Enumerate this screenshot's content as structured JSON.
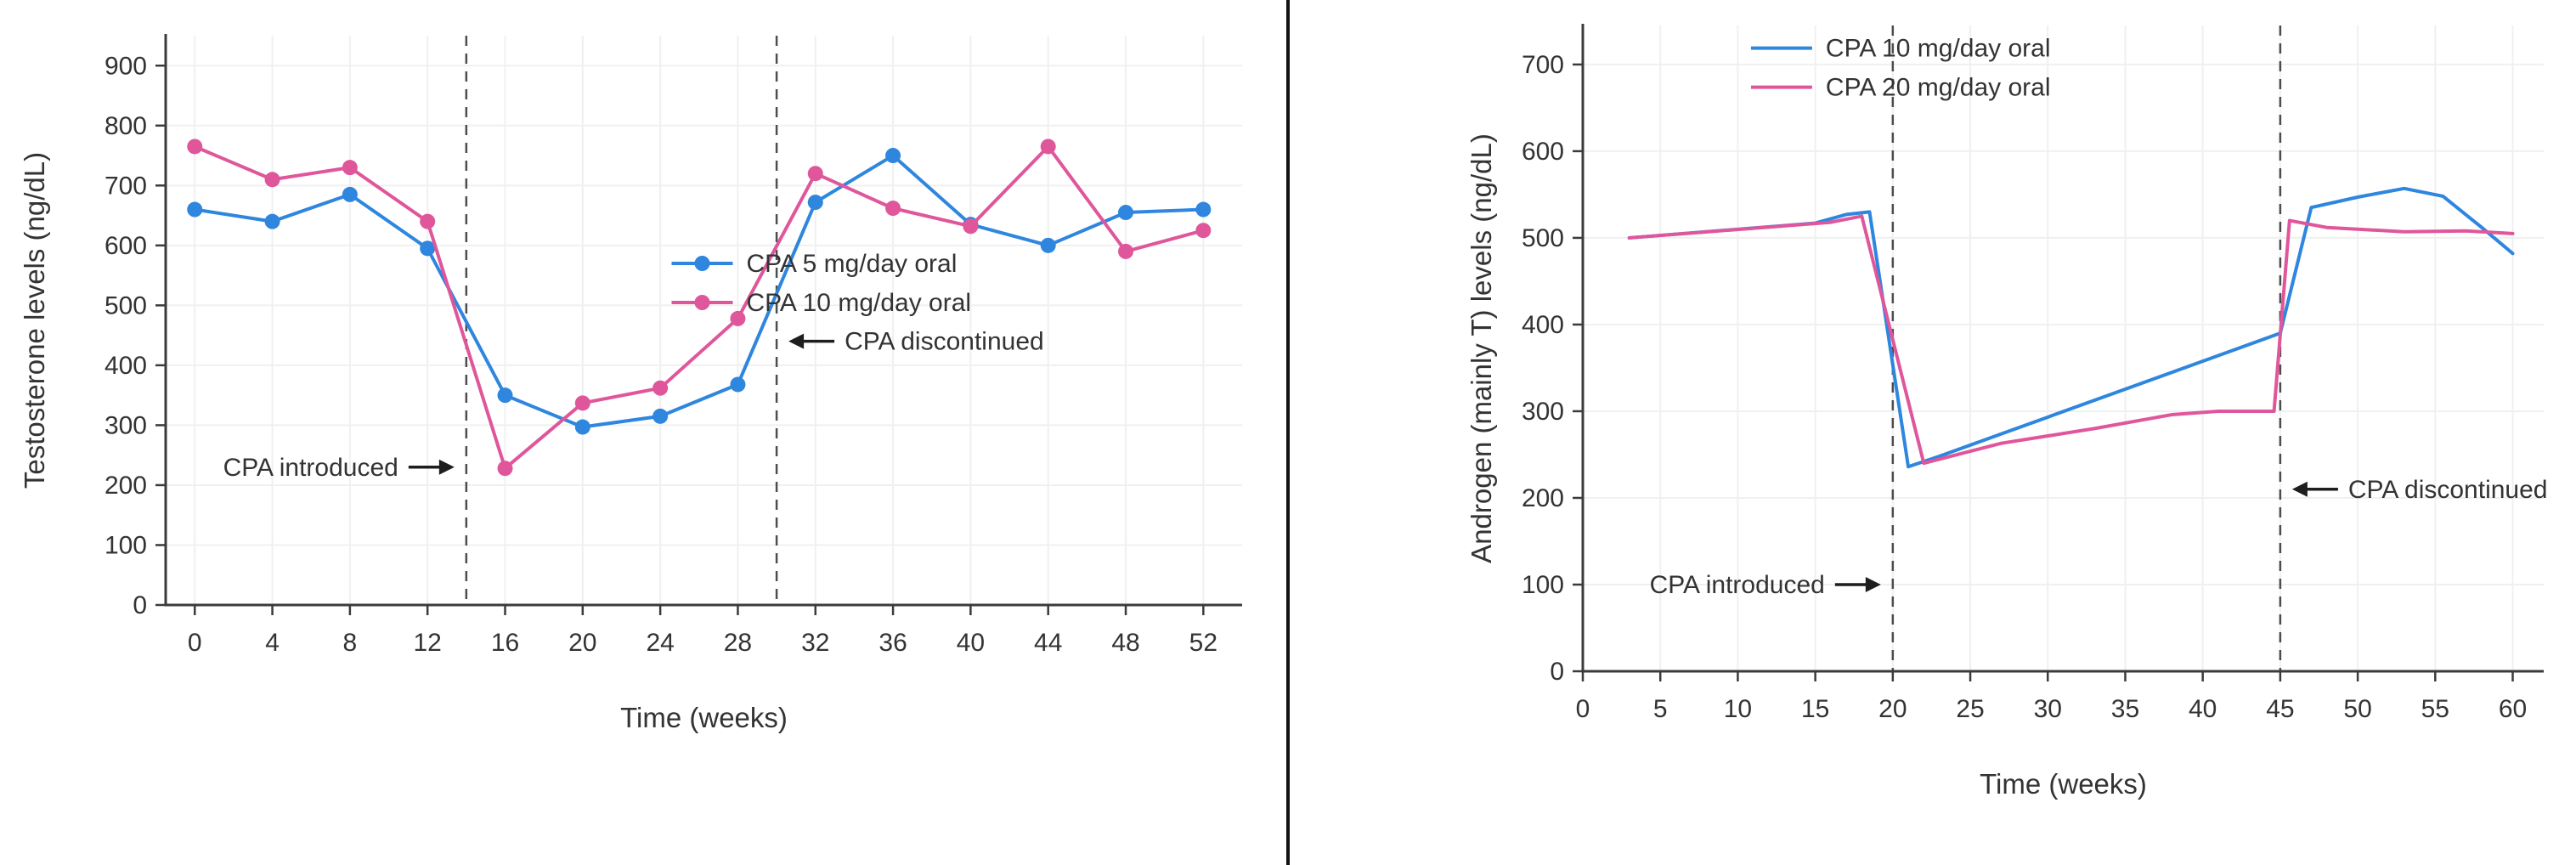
{
  "style": {
    "axis_color": "#3b3b3b",
    "grid_color": "#f0f0f0",
    "vline_color": "#4d4d4d",
    "arrow_color": "#1e1e1e",
    "text_color": "#333333",
    "blue": "#2e86de",
    "pink": "#e0569b"
  },
  "chart_data": [
    {
      "type": "line",
      "title": "",
      "xlabel": "Time (weeks)",
      "ylabel": "Testosterone levels (ng/dL)",
      "xlim": [
        -1.5,
        54
      ],
      "ylim": [
        0,
        950
      ],
      "xticks": [
        0,
        4,
        8,
        12,
        16,
        20,
        24,
        28,
        32,
        36,
        40,
        44,
        48,
        52
      ],
      "yticks": [
        0,
        100,
        200,
        300,
        400,
        500,
        600,
        700,
        800,
        900
      ],
      "grid": true,
      "legend_position": "inside-right-middle",
      "vlines": [
        {
          "x": 14
        },
        {
          "x": 30
        }
      ],
      "series": [
        {
          "name": "CPA 5 mg/day oral",
          "color": "#2e86de",
          "marker": true,
          "points": [
            [
              0,
              660
            ],
            [
              4,
              640
            ],
            [
              8,
              685
            ],
            [
              12,
              595
            ],
            [
              16,
              350
            ],
            [
              20,
              297
            ],
            [
              24,
              315
            ],
            [
              28,
              368
            ],
            [
              32,
              672
            ],
            [
              36,
              750
            ],
            [
              40,
              635
            ],
            [
              44,
              600
            ],
            [
              48,
              655
            ],
            [
              52,
              660
            ]
          ]
        },
        {
          "name": "CPA 10 mg/day oral",
          "color": "#e0569b",
          "marker": true,
          "points": [
            [
              0,
              765
            ],
            [
              4,
              710
            ],
            [
              8,
              730
            ],
            [
              12,
              640
            ],
            [
              16,
              228
            ],
            [
              20,
              337
            ],
            [
              24,
              362
            ],
            [
              28,
              478
            ],
            [
              32,
              720
            ],
            [
              36,
              662
            ],
            [
              40,
              632
            ],
            [
              44,
              765
            ],
            [
              48,
              590
            ],
            [
              52,
              625
            ]
          ]
        }
      ],
      "annotations": [
        {
          "text": "CPA introduced",
          "x": 14,
          "y": 230,
          "dir": "right"
        },
        {
          "text": "CPA discontinued",
          "x": 30,
          "y": 440,
          "dir": "left"
        }
      ],
      "legend": {
        "x": 0.47,
        "y": 0.4,
        "marker": true
      }
    },
    {
      "type": "line",
      "title": "",
      "xlabel": "Time (weeks)",
      "ylabel": "Androgen (mainly T) levels (ng/dL)",
      "xlim": [
        0,
        62
      ],
      "ylim": [
        0,
        745
      ],
      "xticks": [
        0,
        5,
        10,
        15,
        20,
        25,
        30,
        35,
        40,
        45,
        50,
        55,
        60
      ],
      "yticks": [
        0,
        100,
        200,
        300,
        400,
        500,
        600,
        700
      ],
      "grid": true,
      "legend_position": "inside-top-left",
      "vlines": [
        {
          "x": 20
        },
        {
          "x": 45
        }
      ],
      "series": [
        {
          "name": "CPA 10 mg/day oral",
          "color": "#2e86de",
          "marker": false,
          "points": [
            [
              3,
              500
            ],
            [
              15,
              517
            ],
            [
              17,
              527
            ],
            [
              18.5,
              530
            ],
            [
              21,
              236
            ],
            [
              23,
              248
            ],
            [
              45,
              390
            ],
            [
              47,
              535
            ],
            [
              50,
              547
            ],
            [
              53,
              557
            ],
            [
              55.5,
              548
            ],
            [
              58,
              512
            ],
            [
              60,
              482
            ]
          ]
        },
        {
          "name": "CPA 20 mg/day oral",
          "color": "#e0569b",
          "marker": false,
          "points": [
            [
              3,
              500
            ],
            [
              16,
              518
            ],
            [
              18,
              525
            ],
            [
              22,
              240
            ],
            [
              27,
              263
            ],
            [
              33,
              280
            ],
            [
              38,
              296
            ],
            [
              41,
              300
            ],
            [
              44.6,
              300
            ],
            [
              45.6,
              520
            ],
            [
              48,
              512
            ],
            [
              53,
              507
            ],
            [
              57,
              508
            ],
            [
              60,
              505
            ]
          ]
        }
      ],
      "annotations": [
        {
          "text": "CPA introduced",
          "x": 20,
          "y": 100,
          "dir": "right"
        },
        {
          "text": "CPA discontinued",
          "x": 45,
          "y": 210,
          "dir": "left"
        }
      ],
      "legend": {
        "x": 0.175,
        "y": 0.035,
        "marker": false
      }
    }
  ]
}
